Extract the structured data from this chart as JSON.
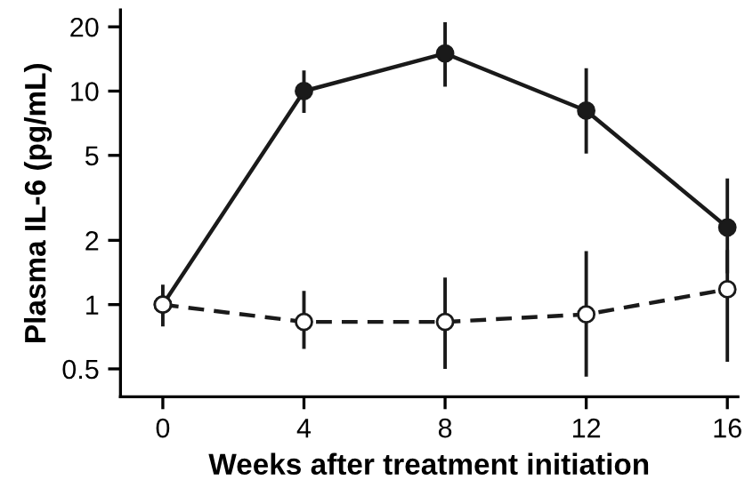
{
  "chart_data": {
    "type": "line",
    "xlabel": "Weeks after treatment initiation",
    "ylabel": "Plasma IL-6 (pg/mL)",
    "log": "y",
    "xlim": [
      -1.2,
      16.3
    ],
    "xticks": [
      0,
      4,
      8,
      12,
      16
    ],
    "ylim": [
      0.37,
      24
    ],
    "yticks": [
      0.5,
      1,
      2,
      5,
      10,
      20
    ],
    "grid": false,
    "series": [
      {
        "color": "#1a1a1a",
        "x": [
          0,
          4,
          8,
          12,
          16
        ],
        "values": [
          1,
          10,
          15,
          8.1,
          2.3
        ],
        "errors": [
          null,
          [
            7.9,
            12.5
          ],
          [
            10.5,
            21
          ],
          [
            5.1,
            12.8
          ],
          [
            1.4,
            3.9
          ]
        ],
        "marker": "circle",
        "line_style": "solid"
      },
      {
        "color": "#1a1a1a",
        "x": [
          0,
          4,
          8,
          12,
          16
        ],
        "values": [
          1,
          0.83,
          0.83,
          0.9,
          1.18
        ],
        "errors": [
          [
            0.79,
            1.24
          ],
          [
            0.62,
            1.16
          ],
          [
            0.5,
            1.34
          ],
          [
            0.46,
            1.78
          ],
          [
            0.54,
            1.8
          ]
        ],
        "marker": "circle",
        "line_style": "dashed"
      }
    ]
  }
}
